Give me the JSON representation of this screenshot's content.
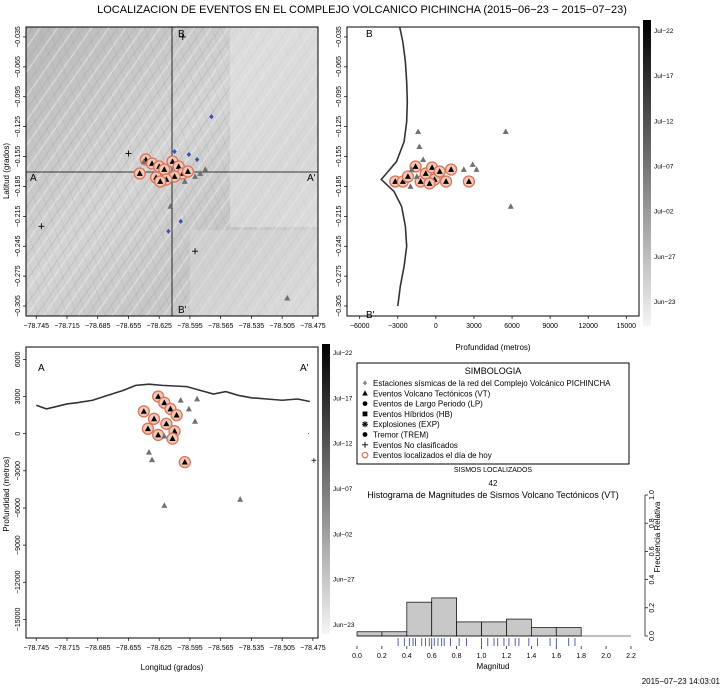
{
  "title": "LOCALIZACION DE EVENTOS EN EL COMPLEJO VOLCANICO PICHINCHA (2015−06−23 − 2015−07−23)",
  "timestamp": "2015−07−23 14:03:01",
  "colorbar_labels": [
    "Jul−22",
    "Jul−17",
    "Jul−12",
    "Jul−07",
    "Jul−02",
    "Jun−27",
    "Jun−23"
  ],
  "colors": {
    "recent_ring": "#d9745a",
    "recent_fill": "#f3c8b6",
    "station": "#8a8a8a",
    "blue_event": "#3a4fb0",
    "rug": "#2a3a9a",
    "frame": "#000000"
  },
  "map": {
    "ylabel": "Latitud (grados)",
    "y_ticks": [
      "−0.035",
      "−0.065",
      "−0.095",
      "−0.125",
      "−0.155",
      "−0.185",
      "−0.215",
      "−0.245",
      "−0.275",
      "−0.305"
    ],
    "x_ticks": [
      "−78.745",
      "−78.715",
      "−78.685",
      "−78.655",
      "−78.625",
      "−78.595",
      "−78.565",
      "−78.535",
      "−78.505",
      "−78.475"
    ],
    "profile_labels": {
      "A": "A",
      "A2": "A'",
      "B": "B",
      "B2": "B'"
    }
  },
  "ns_profile": {
    "xlabel": "Profundidad (metros)",
    "x_ticks": [
      "−6000",
      "−3000",
      "0",
      "3000",
      "6000",
      "9000",
      "12000",
      "15000"
    ],
    "y_ticks": [
      "−0.035",
      "−0.065",
      "−0.095",
      "−0.125",
      "−0.155",
      "−0.185",
      "−0.215",
      "−0.245",
      "−0.275",
      "−0.305"
    ],
    "labels": {
      "B": "B",
      "B2": "B'"
    }
  },
  "ew_profile": {
    "xlabel": "Longitud (grados)",
    "ylabel": "Profundidad (metros)",
    "x_ticks": [
      "−78.745",
      "−78.715",
      "−78.685",
      "−78.655",
      "−78.625",
      "−78.595",
      "−78.565",
      "−78.535",
      "−78.505",
      "−78.475"
    ],
    "y_ticks": [
      "6000",
      "3000",
      "0",
      "−3000",
      "−6000",
      "−9000",
      "−12000",
      "−15000"
    ],
    "labels": {
      "A": "A",
      "A2": "A'"
    }
  },
  "legend": {
    "title": "SIMBOLOGIA",
    "items": [
      {
        "symbol": "diamond",
        "label": "Estaciones sísmicas de la red del Complejo Volcánico PICHINCHA"
      },
      {
        "symbol": "triangle",
        "label": "Eventos Volcano Tectónicos (VT)"
      },
      {
        "symbol": "circle",
        "label": "Eventos de Largo Periodo (LP)"
      },
      {
        "symbol": "square",
        "label": "Eventos Híbridos (HB)"
      },
      {
        "symbol": "star",
        "label": "Explosiones (EXP)"
      },
      {
        "symbol": "circle",
        "label": "Tremor (TREM)"
      },
      {
        "symbol": "plus",
        "label": "Eventos No clasificados"
      },
      {
        "symbol": "ring",
        "label": "Eventos localizados el día de hoy"
      }
    ],
    "count_label": "SISMOS LOCALIZADOS",
    "count": "42"
  },
  "chart_data": [
    {
      "type": "scatter",
      "title": "",
      "xlabel": "",
      "ylabel": "Latitud (grados)",
      "xlim": [
        -78.755,
        -78.47
      ],
      "ylim": [
        -0.315,
        -0.025
      ],
      "points": [
        {
          "x": -78.638,
          "y": -0.158,
          "m": "triangle",
          "recent": true
        },
        {
          "x": -78.632,
          "y": -0.162,
          "m": "triangle",
          "recent": true
        },
        {
          "x": -78.625,
          "y": -0.165,
          "m": "triangle",
          "recent": true
        },
        {
          "x": -78.644,
          "y": -0.172,
          "m": "triangle",
          "recent": true
        },
        {
          "x": -78.628,
          "y": -0.176,
          "m": "triangle",
          "recent": true
        },
        {
          "x": -78.62,
          "y": -0.168,
          "m": "triangle",
          "recent": true
        },
        {
          "x": -78.612,
          "y": -0.16,
          "m": "triangle",
          "recent": true
        },
        {
          "x": -78.606,
          "y": -0.165,
          "m": "triangle",
          "recent": true
        },
        {
          "x": -78.602,
          "y": -0.172,
          "m": "triangle",
          "recent": true
        },
        {
          "x": -78.61,
          "y": -0.175,
          "m": "triangle",
          "recent": true
        },
        {
          "x": -78.618,
          "y": -0.178,
          "m": "triangle",
          "recent": true
        },
        {
          "x": -78.624,
          "y": -0.18,
          "m": "triangle",
          "recent": true
        },
        {
          "x": -78.597,
          "y": -0.17,
          "m": "triangle",
          "recent": true
        },
        {
          "x": -78.59,
          "y": -0.175,
          "m": "triangle",
          "recent": false
        },
        {
          "x": -78.585,
          "y": -0.172,
          "m": "triangle",
          "recent": false
        },
        {
          "x": -78.614,
          "y": -0.205,
          "m": "triangle",
          "recent": false
        },
        {
          "x": -78.58,
          "y": -0.168,
          "m": "triangle",
          "recent": false
        },
        {
          "x": -78.6,
          "y": -0.18,
          "m": "triangle",
          "recent": false
        },
        {
          "x": -78.64,
          "y": -0.16,
          "m": "triangle",
          "recent": false
        },
        {
          "x": -78.5,
          "y": -0.297,
          "m": "triangle",
          "recent": false
        },
        {
          "x": -78.61,
          "y": -0.15,
          "m": "blue",
          "recent": false
        },
        {
          "x": -78.604,
          "y": -0.22,
          "m": "blue",
          "recent": false
        },
        {
          "x": -78.616,
          "y": -0.23,
          "m": "blue",
          "recent": false
        },
        {
          "x": -78.574,
          "y": -0.115,
          "m": "blue",
          "recent": false
        },
        {
          "x": -78.596,
          "y": -0.153,
          "m": "blue",
          "recent": false
        },
        {
          "x": -78.588,
          "y": -0.158,
          "m": "blue",
          "recent": false
        },
        {
          "x": -78.74,
          "y": -0.225,
          "m": "plus",
          "recent": false
        },
        {
          "x": -78.59,
          "y": -0.25,
          "m": "plus",
          "recent": false
        },
        {
          "x": -78.655,
          "y": -0.152,
          "m": "plus",
          "recent": false
        },
        {
          "x": -78.602,
          "y": -0.035,
          "m": "plus",
          "recent": false
        }
      ]
    },
    {
      "type": "scatter",
      "title": "",
      "xlabel": "Profundidad (metros)",
      "ylabel": "",
      "xlim": [
        -7000,
        16000
      ],
      "ylim": [
        -0.315,
        -0.025
      ],
      "points": [
        {
          "x": -3200,
          "y": -0.18,
          "m": "triangle",
          "recent": true
        },
        {
          "x": -2600,
          "y": -0.18,
          "m": "triangle",
          "recent": true
        },
        {
          "x": -2200,
          "y": -0.175,
          "m": "triangle",
          "recent": true
        },
        {
          "x": -1600,
          "y": -0.165,
          "m": "triangle",
          "recent": true
        },
        {
          "x": -1200,
          "y": -0.18,
          "m": "triangle",
          "recent": true
        },
        {
          "x": -800,
          "y": -0.172,
          "m": "triangle",
          "recent": true
        },
        {
          "x": -300,
          "y": -0.166,
          "m": "triangle",
          "recent": true
        },
        {
          "x": -100,
          "y": -0.178,
          "m": "triangle",
          "recent": true
        },
        {
          "x": 300,
          "y": -0.17,
          "m": "triangle",
          "recent": true
        },
        {
          "x": 800,
          "y": -0.18,
          "m": "triangle",
          "recent": true
        },
        {
          "x": 1200,
          "y": -0.168,
          "m": "triangle",
          "recent": true
        },
        {
          "x": 2600,
          "y": -0.18,
          "m": "triangle",
          "recent": true
        },
        {
          "x": -500,
          "y": -0.182,
          "m": "triangle",
          "recent": true
        },
        {
          "x": -1900,
          "y": -0.168,
          "m": "triangle",
          "recent": false
        },
        {
          "x": -2000,
          "y": -0.185,
          "m": "triangle",
          "recent": false
        },
        {
          "x": -1500,
          "y": -0.175,
          "m": "triangle",
          "recent": false
        },
        {
          "x": -1400,
          "y": -0.13,
          "m": "triangle",
          "recent": false
        },
        {
          "x": -1300,
          "y": -0.145,
          "m": "triangle",
          "recent": false
        },
        {
          "x": -1000,
          "y": -0.158,
          "m": "triangle",
          "recent": false
        },
        {
          "x": 2200,
          "y": -0.168,
          "m": "triangle",
          "recent": false
        },
        {
          "x": 2900,
          "y": -0.163,
          "m": "triangle",
          "recent": false
        },
        {
          "x": 3200,
          "y": -0.168,
          "m": "triangle",
          "recent": false
        },
        {
          "x": 5500,
          "y": -0.13,
          "m": "triangle",
          "recent": false
        },
        {
          "x": 5900,
          "y": -0.205,
          "m": "triangle",
          "recent": false
        }
      ],
      "topography": [
        [
          -2850,
          -0.025
        ],
        [
          -2600,
          -0.04
        ],
        [
          -2400,
          -0.06
        ],
        [
          -2300,
          -0.08
        ],
        [
          -2250,
          -0.1
        ],
        [
          -2300,
          -0.12
        ],
        [
          -2500,
          -0.14
        ],
        [
          -3100,
          -0.16
        ],
        [
          -4300,
          -0.178
        ],
        [
          -3300,
          -0.19
        ],
        [
          -2700,
          -0.205
        ],
        [
          -2400,
          -0.225
        ],
        [
          -2300,
          -0.245
        ],
        [
          -2500,
          -0.265
        ],
        [
          -2800,
          -0.285
        ],
        [
          -3000,
          -0.305
        ]
      ]
    },
    {
      "type": "scatter",
      "title": "",
      "xlabel": "Longitud (grados)",
      "ylabel": "Profundidad (metros)",
      "xlim": [
        -78.755,
        -78.47
      ],
      "ylim": [
        -16500,
        7000
      ],
      "points": [
        {
          "x": -78.626,
          "y": 3000,
          "m": "triangle",
          "recent": true
        },
        {
          "x": -78.62,
          "y": 2500,
          "m": "triangle",
          "recent": true
        },
        {
          "x": -78.614,
          "y": 2000,
          "m": "triangle",
          "recent": true
        },
        {
          "x": -78.64,
          "y": 1800,
          "m": "triangle",
          "recent": true
        },
        {
          "x": -78.608,
          "y": 1500,
          "m": "triangle",
          "recent": true
        },
        {
          "x": -78.63,
          "y": 1200,
          "m": "triangle",
          "recent": true
        },
        {
          "x": -78.618,
          "y": 800,
          "m": "triangle",
          "recent": true
        },
        {
          "x": -78.636,
          "y": 400,
          "m": "triangle",
          "recent": true
        },
        {
          "x": -78.61,
          "y": 200,
          "m": "triangle",
          "recent": true
        },
        {
          "x": -78.626,
          "y": -100,
          "m": "triangle",
          "recent": true
        },
        {
          "x": -78.612,
          "y": -400,
          "m": "triangle",
          "recent": true
        },
        {
          "x": -78.6,
          "y": -2300,
          "m": "triangle",
          "recent": true
        },
        {
          "x": -78.604,
          "y": 2700,
          "m": "triangle",
          "recent": false
        },
        {
          "x": -78.596,
          "y": 2000,
          "m": "triangle",
          "recent": false
        },
        {
          "x": -78.588,
          "y": 2800,
          "m": "triangle",
          "recent": false
        },
        {
          "x": -78.59,
          "y": 1000,
          "m": "triangle",
          "recent": false
        },
        {
          "x": -78.635,
          "y": -1500,
          "m": "triangle",
          "recent": false
        },
        {
          "x": -78.632,
          "y": -2100,
          "m": "triangle",
          "recent": false
        },
        {
          "x": -78.62,
          "y": -5800,
          "m": "triangle",
          "recent": false
        },
        {
          "x": -78.546,
          "y": -5300,
          "m": "triangle",
          "recent": false
        },
        {
          "x": -78.62,
          "y": -200,
          "m": "triangle",
          "recent": false
        }
      ],
      "topography": [
        [
          -78.745,
          2300
        ],
        [
          -78.735,
          2000
        ],
        [
          -78.725,
          2200
        ],
        [
          -78.715,
          2400
        ],
        [
          -78.705,
          2500
        ],
        [
          -78.69,
          2700
        ],
        [
          -78.675,
          3100
        ],
        [
          -78.66,
          3500
        ],
        [
          -78.648,
          3900
        ],
        [
          -78.635,
          4000
        ],
        [
          -78.622,
          3900
        ],
        [
          -78.61,
          3850
        ],
        [
          -78.598,
          3800
        ],
        [
          -78.585,
          3500
        ],
        [
          -78.572,
          3200
        ],
        [
          -78.56,
          3400
        ],
        [
          -78.548,
          3100
        ],
        [
          -78.535,
          2900
        ],
        [
          -78.52,
          2800
        ],
        [
          -78.505,
          2700
        ],
        [
          -78.49,
          2800
        ],
        [
          -78.478,
          2600
        ]
      ]
    },
    {
      "type": "bar",
      "title": "Histograma de Magnitudes de Sismos Volcano Tectónicos (VT)",
      "xlabel": "Magnitud",
      "ylabel": "Frecuencia Relativa",
      "x_ticks": [
        "0.0",
        "0.2",
        "0.4",
        "0.6",
        "0.8",
        "1.0",
        "1.2",
        "1.4",
        "1.6",
        "1.8",
        "2.0",
        "2.2"
      ],
      "y_ticks": [
        "0.0",
        "0.2",
        "0.4",
        "0.6",
        "0.8",
        "1.0"
      ],
      "bin_edges": [
        0.0,
        0.2,
        0.4,
        0.6,
        0.8,
        1.0,
        1.2,
        1.4,
        1.6,
        1.8,
        2.0,
        2.2
      ],
      "values": [
        0.03,
        0.03,
        0.24,
        0.27,
        0.1,
        0.1,
        0.12,
        0.06,
        0.06,
        0.0,
        0.0
      ],
      "ylim": [
        0,
        1.0
      ],
      "rug": [
        0.33,
        0.38,
        0.42,
        0.45,
        0.47,
        0.52,
        0.55,
        0.58,
        0.6,
        0.62,
        0.65,
        0.68,
        0.7,
        0.75,
        0.82,
        0.88,
        1.0,
        1.05,
        1.1,
        1.13,
        1.18,
        1.22,
        1.27,
        1.3,
        1.38,
        1.45,
        1.55,
        1.6,
        1.7,
        1.75
      ]
    }
  ]
}
